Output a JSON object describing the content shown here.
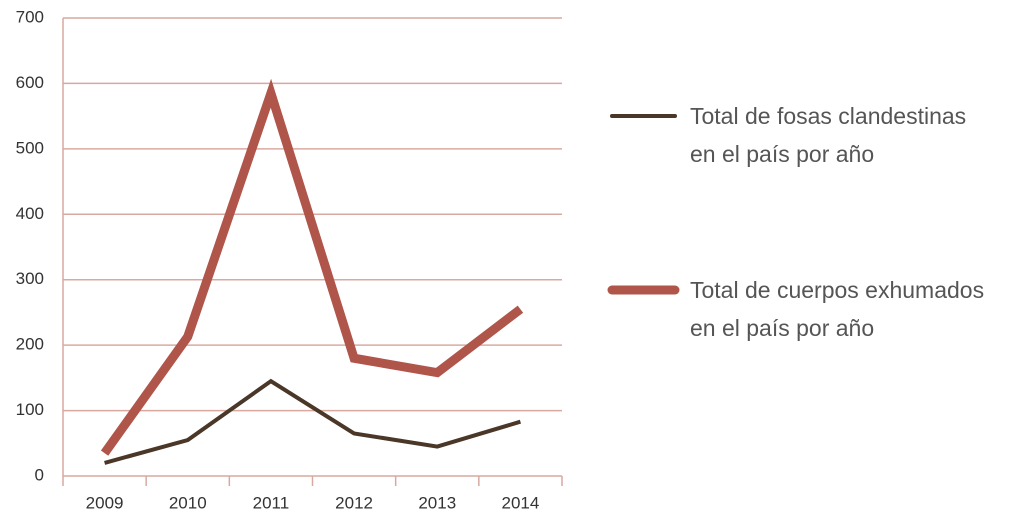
{
  "chart_data": {
    "type": "line",
    "categories": [
      "2009",
      "2010",
      "2011",
      "2012",
      "2013",
      "2014"
    ],
    "series": [
      {
        "name": "Total de fosas clandestinas\nen el país por año",
        "color": "#4a3728",
        "width": 4,
        "values": [
          20,
          55,
          145,
          65,
          45,
          83
        ]
      },
      {
        "name": "Total de cuerpos exhumados\nen el país por año",
        "color": "#b0554a",
        "width": 9,
        "values": [
          35,
          213,
          585,
          180,
          158,
          255
        ]
      }
    ],
    "ylim": [
      0,
      700
    ],
    "yticks": [
      0,
      100,
      200,
      300,
      400,
      500,
      600,
      700
    ],
    "grid": true,
    "legend": "right"
  }
}
